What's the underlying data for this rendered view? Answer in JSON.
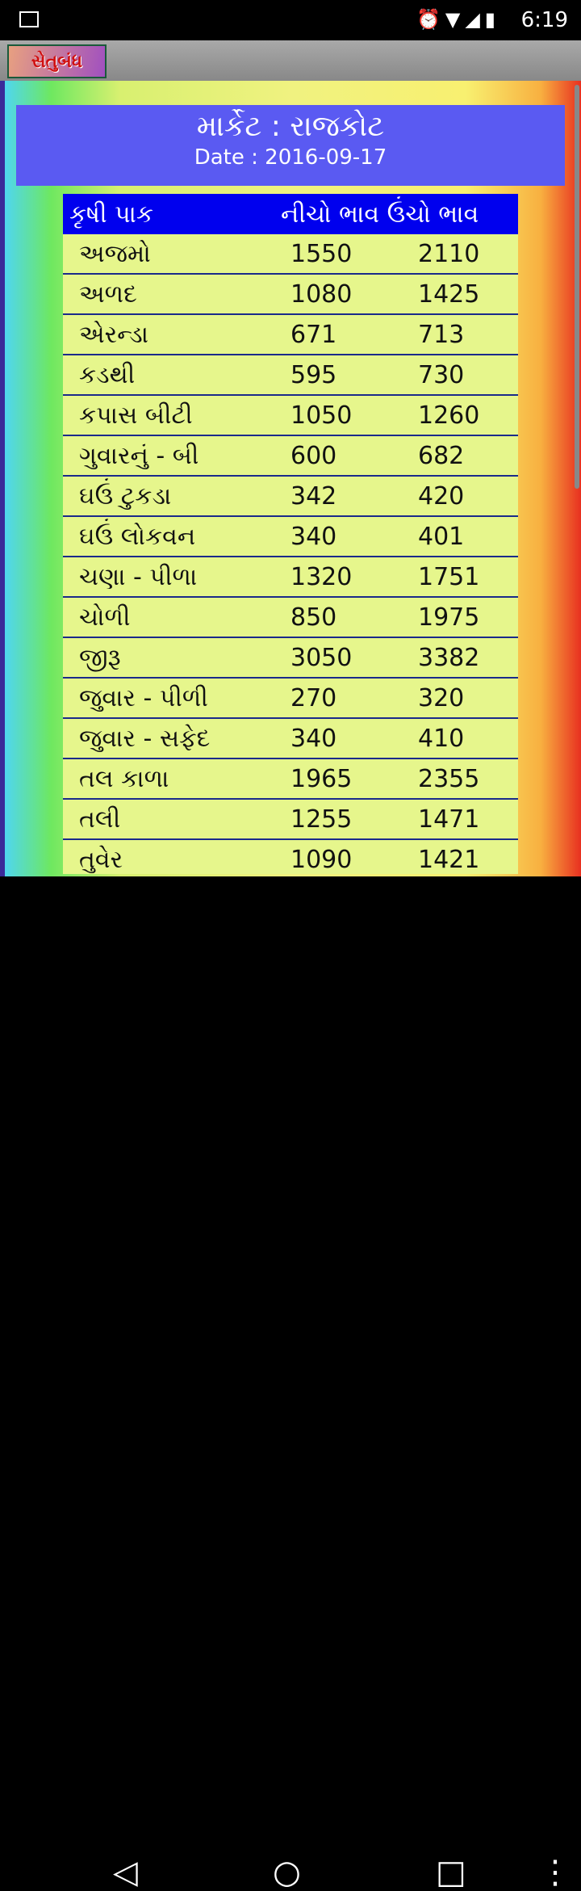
{
  "status_bar": {
    "time": "6:19"
  },
  "app": {
    "logo_text": "સેતુબંધ"
  },
  "header": {
    "title": "માર્કેટ : રાજકોટ",
    "date_label": "Date :",
    "date": "2016-09-17"
  },
  "table": {
    "columns": [
      "કૃષી પાક",
      "નીચો ભાવ",
      "ઉંચો ભાવ"
    ],
    "rows": [
      [
        "અજમો",
        "1550",
        "2110"
      ],
      [
        "અળદ",
        "1080",
        "1425"
      ],
      [
        "એરન્ડા",
        "671",
        "713"
      ],
      [
        "કડથી",
        "595",
        "730"
      ],
      [
        "કપાસ બીટી",
        "1050",
        "1260"
      ],
      [
        "ગુવારનું - બી",
        "600",
        "682"
      ],
      [
        "ઘઉં ટુકડા",
        "342",
        "420"
      ],
      [
        "ઘઉં લોકવન",
        "340",
        "401"
      ],
      [
        "ચણા - પીળા",
        "1320",
        "1751"
      ],
      [
        "ચોળી",
        "850",
        "1975"
      ],
      [
        "જીરૂ",
        "3050",
        "3382"
      ],
      [
        "જુવાર - પીળી",
        "270",
        "320"
      ],
      [
        "જુવાર - સફેદ",
        "340",
        "410"
      ],
      [
        "તલ કાળા",
        "1965",
        "2355"
      ],
      [
        "તલી",
        "1255",
        "1471"
      ],
      [
        "તુવેર",
        "1090",
        "1421"
      ]
    ]
  },
  "colors": {
    "header_bg": "#5a5af2",
    "table_header_bg": "#0000ee",
    "row_bg": "#e6f68c"
  }
}
